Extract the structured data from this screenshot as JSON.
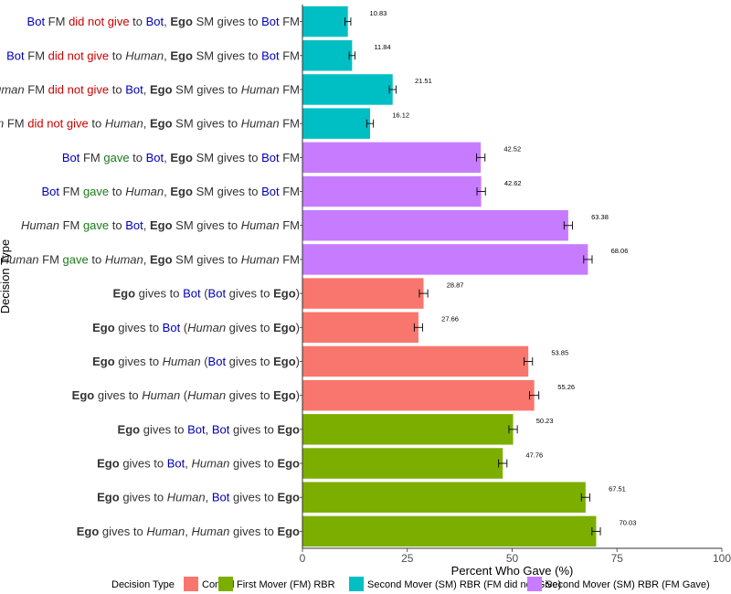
{
  "chart_data": {
    "type": "bar",
    "orientation": "horizontal",
    "xlabel": "Percent Who Gave (%)",
    "ylabel": "Decision Type",
    "xlim": [
      0,
      100
    ],
    "xticks": [
      0,
      25,
      50,
      75,
      100
    ],
    "grid": false,
    "legend": {
      "title": "Decision Type",
      "position": "bottom",
      "entries": [
        {
          "name": "Control",
          "color": "#F8766D"
        },
        {
          "name": "First Mover (FM) RBR",
          "color": "#7CAE00"
        },
        {
          "name": "Second Mover (SM) RBR (FM did not Give)",
          "color": "#00BFC4"
        },
        {
          "name": "Second Mover (SM) RBR (FM Gave)",
          "color": "#C77CFF"
        }
      ]
    },
    "text_colors": {
      "bot": "#0000b3",
      "neg": "#cc0000",
      "pos": "#1a7a1a"
    },
    "bars": [
      {
        "group": "Second Mover (SM) RBR (FM did not Give)",
        "value": 10.83,
        "err": 0.7,
        "label": "10.83",
        "segs": [
          [
            "Bot",
            "bot"
          ],
          [
            " FM ",
            ""
          ],
          [
            "did not give",
            "neg"
          ],
          [
            " to ",
            ""
          ],
          [
            "Bot",
            "bot"
          ],
          [
            ", ",
            ""
          ],
          [
            "Ego",
            "b"
          ],
          [
            " SM gives to ",
            ""
          ],
          [
            "Bot",
            "bot"
          ],
          [
            " FM",
            ""
          ]
        ]
      },
      {
        "group": "Second Mover (SM) RBR (FM did not Give)",
        "value": 11.84,
        "err": 0.7,
        "label": "11.84",
        "segs": [
          [
            "Bot",
            "bot"
          ],
          [
            " FM ",
            ""
          ],
          [
            "did not give",
            "neg"
          ],
          [
            " to ",
            ""
          ],
          [
            "Human",
            "i"
          ],
          [
            ", ",
            ""
          ],
          [
            "Ego",
            "b"
          ],
          [
            " SM gives to ",
            ""
          ],
          [
            "Bot",
            "bot"
          ],
          [
            " FM",
            ""
          ]
        ]
      },
      {
        "group": "Second Mover (SM) RBR (FM did not Give)",
        "value": 21.51,
        "err": 0.8,
        "label": "21.51",
        "segs": [
          [
            "Human",
            "i"
          ],
          [
            " FM ",
            ""
          ],
          [
            "did not give",
            "neg"
          ],
          [
            " to ",
            ""
          ],
          [
            "Bot",
            "bot"
          ],
          [
            ", ",
            ""
          ],
          [
            "Ego",
            "b"
          ],
          [
            " SM gives to ",
            ""
          ],
          [
            "Human",
            "i"
          ],
          [
            " FM",
            ""
          ]
        ]
      },
      {
        "group": "Second Mover (SM) RBR (FM did not Give)",
        "value": 16.12,
        "err": 0.8,
        "label": "16.12",
        "segs": [
          [
            "Human",
            "i"
          ],
          [
            " FM ",
            ""
          ],
          [
            "did not give",
            "neg"
          ],
          [
            " to ",
            ""
          ],
          [
            "Human",
            "i"
          ],
          [
            ", ",
            ""
          ],
          [
            "Ego",
            "b"
          ],
          [
            " SM gives to ",
            ""
          ],
          [
            "Human",
            "i"
          ],
          [
            " FM",
            ""
          ]
        ]
      },
      {
        "group": "Second Mover (SM) RBR (FM Gave)",
        "value": 42.52,
        "err": 1.0,
        "label": "42.52",
        "segs": [
          [
            "Bot",
            "bot"
          ],
          [
            " FM ",
            ""
          ],
          [
            "gave",
            "pos"
          ],
          [
            " to ",
            ""
          ],
          [
            "Bot",
            "bot"
          ],
          [
            ", ",
            ""
          ],
          [
            "Ego",
            "b"
          ],
          [
            " SM gives to ",
            ""
          ],
          [
            "Bot",
            "bot"
          ],
          [
            " FM",
            ""
          ]
        ]
      },
      {
        "group": "Second Mover (SM) RBR (FM Gave)",
        "value": 42.62,
        "err": 1.0,
        "label": "42.62",
        "segs": [
          [
            "Bot",
            "bot"
          ],
          [
            " FM ",
            ""
          ],
          [
            "gave",
            "pos"
          ],
          [
            " to ",
            ""
          ],
          [
            "Human",
            "i"
          ],
          [
            ", ",
            ""
          ],
          [
            "Ego",
            "b"
          ],
          [
            " SM gives to ",
            ""
          ],
          [
            "Bot",
            "bot"
          ],
          [
            " FM",
            ""
          ]
        ]
      },
      {
        "group": "Second Mover (SM) RBR (FM Gave)",
        "value": 63.38,
        "err": 1.0,
        "label": "63.38",
        "segs": [
          [
            "Human",
            "i"
          ],
          [
            " FM ",
            ""
          ],
          [
            "gave",
            "pos"
          ],
          [
            " to ",
            ""
          ],
          [
            "Bot",
            "bot"
          ],
          [
            ", ",
            ""
          ],
          [
            "Ego",
            "b"
          ],
          [
            " SM gives to ",
            ""
          ],
          [
            "Human",
            "i"
          ],
          [
            " FM",
            ""
          ]
        ]
      },
      {
        "group": "Second Mover (SM) RBR (FM Gave)",
        "value": 68.06,
        "err": 1.0,
        "label": "68.06",
        "segs": [
          [
            "Human",
            "i"
          ],
          [
            " FM ",
            ""
          ],
          [
            "gave",
            "pos"
          ],
          [
            " to ",
            ""
          ],
          [
            "Human",
            "i"
          ],
          [
            ", ",
            ""
          ],
          [
            "Ego",
            "b"
          ],
          [
            " SM gives to ",
            ""
          ],
          [
            "Human",
            "i"
          ],
          [
            " FM",
            ""
          ]
        ]
      },
      {
        "group": "Control",
        "value": 28.87,
        "err": 1.0,
        "label": "28.87",
        "segs": [
          [
            "Ego",
            "b"
          ],
          [
            " gives to ",
            ""
          ],
          [
            "Bot",
            "bot"
          ],
          [
            " (",
            ""
          ],
          [
            "Bot",
            "bot"
          ],
          [
            " gives to ",
            ""
          ],
          [
            "Ego",
            "b"
          ],
          [
            ")",
            ""
          ]
        ]
      },
      {
        "group": "Control",
        "value": 27.66,
        "err": 1.0,
        "label": "27.66",
        "segs": [
          [
            "Ego",
            "b"
          ],
          [
            " gives to ",
            ""
          ],
          [
            "Bot",
            "bot"
          ],
          [
            " (",
            ""
          ],
          [
            "Human",
            "i"
          ],
          [
            " gives to ",
            ""
          ],
          [
            "Ego",
            "b"
          ],
          [
            ")",
            ""
          ]
        ]
      },
      {
        "group": "Control",
        "value": 53.85,
        "err": 1.0,
        "label": "53.85",
        "segs": [
          [
            "Ego",
            "b"
          ],
          [
            " gives to ",
            ""
          ],
          [
            "Human",
            "i"
          ],
          [
            " (",
            ""
          ],
          [
            "Bot",
            "bot"
          ],
          [
            " gives to ",
            ""
          ],
          [
            "Ego",
            "b"
          ],
          [
            ")",
            ""
          ]
        ]
      },
      {
        "group": "Control",
        "value": 55.26,
        "err": 1.1,
        "label": "55.26",
        "segs": [
          [
            "Ego",
            "b"
          ],
          [
            " gives to ",
            ""
          ],
          [
            "Human",
            "i"
          ],
          [
            " (",
            ""
          ],
          [
            "Human",
            "i"
          ],
          [
            " gives to ",
            ""
          ],
          [
            "Ego",
            "b"
          ],
          [
            ")",
            ""
          ]
        ]
      },
      {
        "group": "First Mover (FM) RBR",
        "value": 50.23,
        "err": 1.0,
        "label": "50.23",
        "segs": [
          [
            "Ego",
            "b"
          ],
          [
            " gives to ",
            ""
          ],
          [
            "Bot",
            "bot"
          ],
          [
            ", ",
            ""
          ],
          [
            "Bot",
            "bot"
          ],
          [
            " gives to ",
            ""
          ],
          [
            "Ego",
            "b"
          ]
        ]
      },
      {
        "group": "First Mover (FM) RBR",
        "value": 47.76,
        "err": 1.0,
        "label": "47.76",
        "segs": [
          [
            "Ego",
            "b"
          ],
          [
            " gives to ",
            ""
          ],
          [
            "Bot",
            "bot"
          ],
          [
            ", ",
            ""
          ],
          [
            "Human",
            "i"
          ],
          [
            " gives to ",
            ""
          ],
          [
            "Ego",
            "b"
          ]
        ]
      },
      {
        "group": "First Mover (FM) RBR",
        "value": 67.51,
        "err": 1.0,
        "label": "67.51",
        "segs": [
          [
            "Ego",
            "b"
          ],
          [
            " gives to ",
            ""
          ],
          [
            "Human",
            "i"
          ],
          [
            ", ",
            ""
          ],
          [
            "Bot",
            "bot"
          ],
          [
            " gives to ",
            ""
          ],
          [
            "Ego",
            "b"
          ]
        ]
      },
      {
        "group": "First Mover (FM) RBR",
        "value": 70.03,
        "err": 1.0,
        "label": "70.03",
        "segs": [
          [
            "Ego",
            "b"
          ],
          [
            " gives to ",
            ""
          ],
          [
            "Human",
            "i"
          ],
          [
            ", ",
            ""
          ],
          [
            "Human",
            "i"
          ],
          [
            " gives to ",
            ""
          ],
          [
            "Ego",
            "b"
          ]
        ]
      }
    ]
  }
}
